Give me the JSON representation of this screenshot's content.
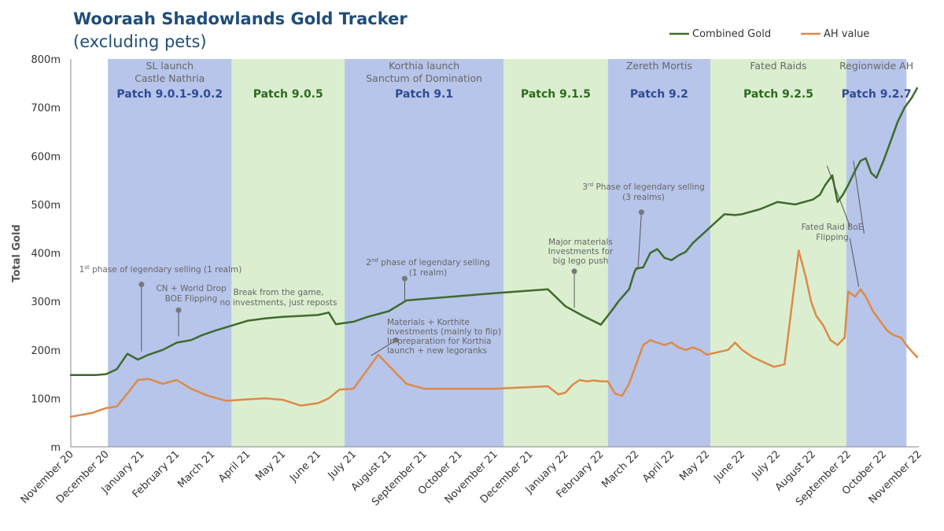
{
  "title": "Wooraah Shadowlands Gold Tracker",
  "subtitle": "(excluding pets)",
  "colors": {
    "combined": "#3e6b2c",
    "ah": "#dd8a47",
    "band_blue": "#b7c5ea",
    "band_green": "#dbefd0",
    "label_blue": "#2f4b96",
    "label_green": "#2e6a20"
  },
  "chart_data": {
    "type": "line",
    "ylabel": "Total Gold",
    "ylim": [
      0,
      800
    ],
    "ytick_labels": [
      "m",
      "100m",
      "200m",
      "300m",
      "400m",
      "500m",
      "600m",
      "700m",
      "800m"
    ],
    "xlim": [
      0,
      24
    ],
    "x_tick_labels": [
      "November 20",
      "December 20",
      "January 21",
      "February 21",
      "March 21",
      "April 21",
      "May 21",
      "June 21",
      "July 21",
      "August 21",
      "September 21",
      "October 21",
      "November 21",
      "December 21",
      "January 22",
      "February 22",
      "March 22",
      "April 22",
      "May 22",
      "June 22",
      "July 22",
      "August 22",
      "September 22",
      "October 22",
      "November 22"
    ],
    "legend_position": "top-right",
    "bands": [
      {
        "start": 1.05,
        "end": 4.55,
        "color": "blue",
        "patch": "Patch 9.0.1-9.0.2",
        "note": [
          "SL launch",
          "Castle Nathria"
        ]
      },
      {
        "start": 4.55,
        "end": 7.75,
        "color": "green",
        "patch": "Patch 9.0.5",
        "note": []
      },
      {
        "start": 7.75,
        "end": 12.25,
        "color": "blue",
        "patch": "Patch 9.1",
        "note": [
          "Korthia launch",
          "Sanctum of Domination"
        ]
      },
      {
        "start": 12.25,
        "end": 15.2,
        "color": "green",
        "patch": "Patch 9.1.5",
        "note": []
      },
      {
        "start": 15.2,
        "end": 18.1,
        "color": "blue",
        "patch": "Patch 9.2",
        "note": [
          "Zereth Mortis"
        ]
      },
      {
        "start": 18.1,
        "end": 21.95,
        "color": "green",
        "patch": "Patch 9.2.5",
        "note": [
          "Fated Raids"
        ]
      },
      {
        "start": 21.95,
        "end": 23.65,
        "color": "blue",
        "patch": "Patch 9.2.7",
        "note": [
          "Regionwide  AH"
        ]
      }
    ],
    "series": [
      {
        "name": "Combined Gold",
        "x": [
          0,
          0.7,
          1.0,
          1.3,
          1.6,
          1.9,
          2.2,
          2.6,
          3.0,
          3.4,
          3.7,
          4.1,
          5.0,
          5.5,
          6.0,
          6.5,
          7.0,
          7.3,
          7.5,
          8.0,
          8.4,
          9.0,
          9.5,
          10.0,
          12.2,
          13.5,
          14.0,
          14.5,
          15.0,
          15.3,
          15.5,
          15.8,
          15.95,
          16.0,
          16.2,
          16.4,
          16.6,
          16.8,
          17.0,
          17.2,
          17.4,
          17.6,
          17.9,
          18.2,
          18.5,
          18.8,
          19.0,
          19.5,
          20.0,
          20.5,
          21.0,
          21.2,
          21.35,
          21.55,
          21.7,
          21.85,
          22.0,
          22.2,
          22.35,
          22.5,
          22.65,
          22.8,
          23.0,
          23.2,
          23.4,
          23.6,
          23.8,
          23.95
        ],
        "y": [
          148,
          148,
          150,
          160,
          192,
          180,
          190,
          200,
          215,
          220,
          230,
          240,
          260,
          265,
          268,
          270,
          272,
          277,
          253,
          258,
          268,
          280,
          302,
          305,
          318,
          325,
          290,
          270,
          252,
          280,
          300,
          325,
          360,
          368,
          370,
          400,
          408,
          390,
          385,
          395,
          402,
          420,
          440,
          460,
          480,
          478,
          480,
          490,
          505,
          500,
          510,
          520,
          540,
          560,
          505,
          520,
          540,
          570,
          590,
          595,
          565,
          555,
          590,
          630,
          670,
          700,
          720,
          740
        ]
      },
      {
        "name": "AH value",
        "x": [
          0,
          0.6,
          1.0,
          1.3,
          1.6,
          1.9,
          2.2,
          2.6,
          3.0,
          3.4,
          3.9,
          4.4,
          5.0,
          5.5,
          6.0,
          6.5,
          7.0,
          7.3,
          7.6,
          8.0,
          8.3,
          8.7,
          9.1,
          9.5,
          10.0,
          12.0,
          13.5,
          13.8,
          14.0,
          14.2,
          14.4,
          14.6,
          14.8,
          15.0,
          15.2,
          15.4,
          15.6,
          15.8,
          16.0,
          16.2,
          16.4,
          16.6,
          16.8,
          17.0,
          17.2,
          17.4,
          17.6,
          17.8,
          18.0,
          18.3,
          18.6,
          18.8,
          19.0,
          19.3,
          19.6,
          19.9,
          20.2,
          20.6,
          20.8,
          20.95,
          21.1,
          21.3,
          21.5,
          21.7,
          21.9,
          22.0,
          22.2,
          22.35,
          22.5,
          22.7,
          22.9,
          23.1,
          23.3,
          23.5,
          23.7,
          23.95
        ],
        "y": [
          62,
          70,
          80,
          83,
          110,
          138,
          140,
          130,
          138,
          120,
          105,
          95,
          98,
          100,
          97,
          85,
          90,
          100,
          118,
          120,
          150,
          190,
          160,
          130,
          120,
          120,
          125,
          108,
          112,
          128,
          138,
          135,
          137,
          135,
          135,
          110,
          105,
          130,
          170,
          210,
          220,
          215,
          210,
          215,
          205,
          200,
          205,
          200,
          190,
          195,
          200,
          215,
          200,
          185,
          175,
          165,
          170,
          405,
          350,
          300,
          270,
          250,
          220,
          210,
          225,
          320,
          310,
          325,
          310,
          280,
          260,
          240,
          230,
          225,
          205,
          185
        ]
      }
    ],
    "annotations": [
      {
        "text": "1st phase of legendary selling (1 realm)",
        "lines": [
          "1",
          "st",
          " phase of legendary selling (1 realm)"
        ],
        "marker": [
          2.0,
          335
        ],
        "line_to": [
          2.0,
          197
        ]
      },
      {
        "text": "CN + World Drop BOE Flipping",
        "lines": [
          "CN + World Drop",
          "BOE Flipping"
        ],
        "marker": [
          3.05,
          282
        ],
        "line_to": [
          3.05,
          228
        ]
      },
      {
        "text": "Break from the game, no investments, just reposts",
        "lines": [
          "Break from the game,",
          "no investments, just reposts"
        ],
        "marker": null,
        "line_to": null
      },
      {
        "text": "2nd phase of legendary selling (1 realm)",
        "lines": [
          "2",
          "nd",
          " phase of legendary selling",
          "(1 realm)"
        ],
        "marker": [
          9.45,
          347
        ],
        "line_to": [
          9.45,
          300
        ]
      },
      {
        "text": "Materials + Korthite investments (mainly to flip) In preparation for Korthia launch + new legoranks",
        "lines": [
          "Materials + Korthite",
          "investments (mainly to flip)",
          "In preparation for Korthia",
          "launch + new legoranks"
        ],
        "marker": [
          9.2,
          220
        ],
        "line_to": [
          8.5,
          188
        ]
      },
      {
        "text": "Major materials Investments for big lego push",
        "lines": [
          "Major materials",
          "Investments for",
          "big lego push"
        ],
        "marker": [
          14.25,
          362
        ],
        "line_to": [
          14.25,
          287
        ]
      },
      {
        "text": "3rd Phase of legendary selling (3 realms)",
        "lines": [
          "3",
          "rd",
          " Phase of legendary selling",
          "(3 realms)"
        ],
        "marker": [
          16.15,
          484
        ],
        "line_to": [
          16.05,
          365
        ]
      },
      {
        "text": "Fated Raid BoE Flipping",
        "lines": [
          "Fated Raid BoE",
          "Flipping"
        ],
        "marker": null,
        "line_to": null
      }
    ]
  }
}
